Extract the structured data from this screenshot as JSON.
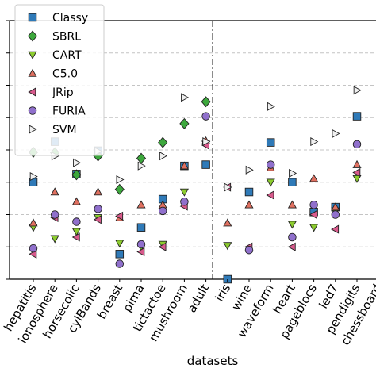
{
  "chart_data": {
    "type": "scatter",
    "title": "",
    "xlabel": "datasets",
    "ylabel": "",
    "y_scale": "log",
    "ylim": [
      1,
      100000000
    ],
    "categories": [
      "hepatitis",
      "ionosphere",
      "horsecolic",
      "cylBands",
      "breast",
      "pima",
      "tictactoe",
      "mushroom",
      "adult",
      "iris",
      "wine",
      "waveform",
      "heart",
      "pageblocs",
      "led7",
      "pendigits",
      "chessboard"
    ],
    "separator_after": "adult",
    "grid": "horizontal dashed",
    "legend_position": "top-left",
    "series": [
      {
        "name": "Classy",
        "marker": "square",
        "color": "#2f7ab8",
        "values": [
          1000,
          18000,
          1800,
          9500,
          6,
          40,
          300,
          3200,
          3500,
          1,
          500,
          17000,
          1000,
          120,
          170,
          110000,
          null
        ]
      },
      {
        "name": "SBRL",
        "marker": "diamond",
        "color": "#3da83d",
        "values": [
          8500,
          8200,
          1700,
          6500,
          600,
          5500,
          17000,
          65000,
          310000,
          null,
          null,
          null,
          null,
          null,
          null,
          null,
          null
        ]
      },
      {
        "name": "CART",
        "marker": "triangle-down",
        "color": "#8ccc2e",
        "values": [
          40,
          18,
          30,
          80,
          13,
          10,
          12,
          500,
          15000,
          11,
          null,
          1000,
          50,
          40,
          130,
          1300,
          null
        ]
      },
      {
        "name": "C5.0",
        "marker": "triangle-up",
        "color": "#e07060",
        "values": [
          55,
          500,
          250,
          500,
          80,
          200,
          200,
          3200,
          19000,
          55,
          200,
          2800,
          200,
          1300,
          170,
          3500,
          null
        ]
      },
      {
        "name": "JRip",
        "marker": "triangle-left",
        "color": "#d85a8c",
        "values": [
          6,
          80,
          20,
          70,
          90,
          7,
          10,
          180,
          14000,
          700,
          10,
          400,
          10,
          100,
          35,
          2000,
          null
        ]
      },
      {
        "name": "FURIA",
        "marker": "circle",
        "color": "#9070cc",
        "values": [
          9,
          100,
          60,
          150,
          3,
          12,
          130,
          250,
          110000,
          null,
          8,
          3500,
          20,
          200,
          100,
          15000,
          null
        ]
      },
      {
        "name": "SVM",
        "marker": "triangle-right",
        "color": "#f0f0f0",
        "values": [
          1500,
          6500,
          4000,
          9000,
          1200,
          3200,
          6500,
          420000,
          18000,
          700,
          2400,
          220000,
          1900,
          18000,
          32000,
          700000,
          null
        ]
      }
    ]
  }
}
